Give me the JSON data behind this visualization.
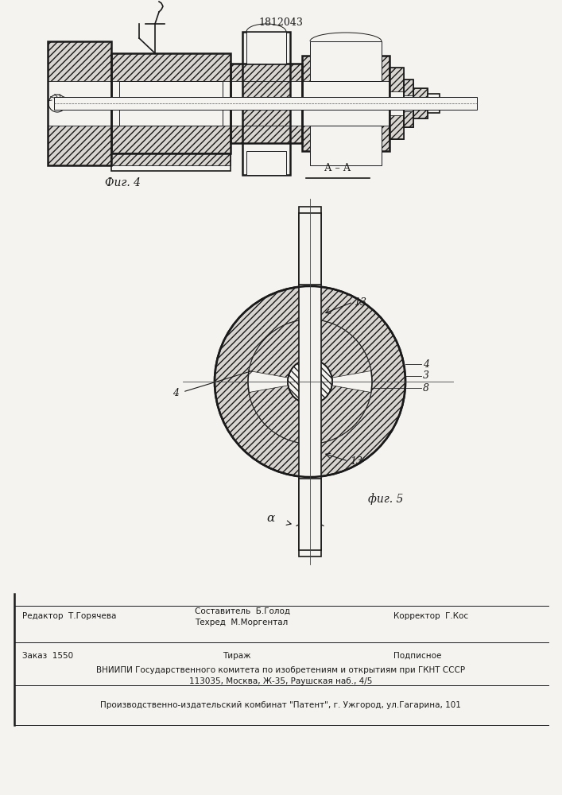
{
  "patent_number": "1812043",
  "fig4_label": "Фиг. 4",
  "fig5_label": "фиг. 5",
  "section_label": "А – А",
  "bg_color": "#f5f3ef",
  "line_color": "#1a1a1a",
  "label_13_top": "13",
  "label_4_right": "4",
  "label_3_right": "3",
  "label_8_right": "8",
  "label_4_left": "4",
  "label_13_bottom": "13",
  "label_alpha": "α",
  "editor_line": "Редактор  Т.Горячева",
  "composer_line": "Составитель  Б.Голод",
  "techred_line": "Техред  М.Моргентал",
  "corrector_line": "Корректор  Г.Кос",
  "order_line": "Заказ  1550",
  "tirazh_line": "Тираж",
  "podpisnoe_line": "Подписное",
  "vniipи_line": "ВНИИПИ Государственного комитета по изобретениям и открытиям при ГКНТ СССР",
  "address_line": "113035, Москва, Ж-35, Раушская наб., 4/5",
  "production_line": "Производственно-издательский комбинат \"Патент\", г. Ужгород, ул.Гагарина, 101"
}
